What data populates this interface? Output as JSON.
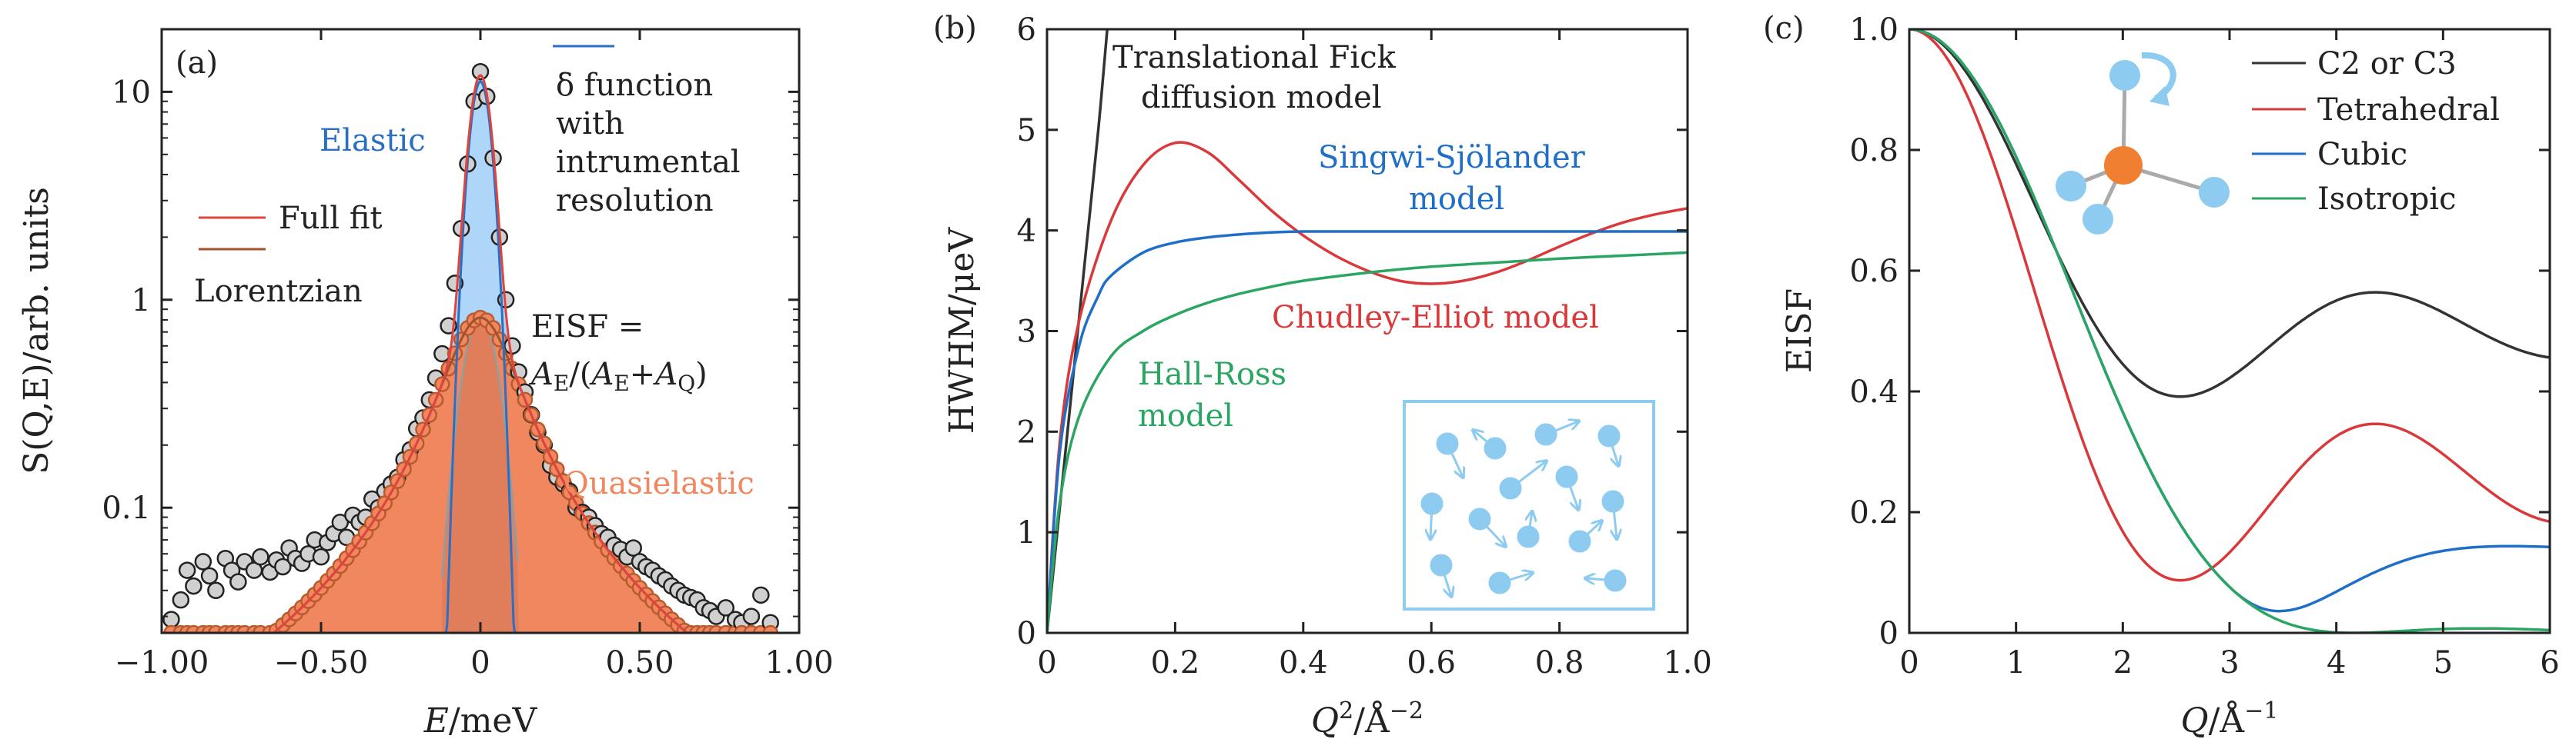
{
  "colors": {
    "fit": "#e0443c",
    "lorentz_line": "#a0522d",
    "lorentz_fill": "#f0875e",
    "elastic_fill": "#aed6f8",
    "elastic_line": "#2a6fc4",
    "data_fill": "#d0d0d0",
    "c2c3": "#333333",
    "tetra": "#d9393b",
    "cubic": "#1f6fc8",
    "iso": "#2aa562",
    "fick": "#333333",
    "ce": "#d9393b",
    "ss": "#1f6fc8",
    "hr": "#2aa562",
    "molecule_center": "#f07f31",
    "molecule_h": "#8ecbf0"
  },
  "chart_data": [
    {
      "panel": "(a)",
      "type": "line",
      "xlabel_pre": "E",
      "xlabel_post": "/meV",
      "ylabel": "S(Q,E)/arb. units",
      "yscale": "log",
      "xlim": [
        -1.0,
        1.0
      ],
      "ylim": [
        0.025,
        20
      ],
      "xticks": [
        -1.0,
        -0.5,
        0,
        0.5,
        1.0
      ],
      "xtick_labels": [
        "−1.00",
        "−0.50",
        "0",
        "0.50",
        "1.00"
      ],
      "yticks": [
        0.1,
        1,
        10
      ],
      "ytick_labels": [
        "0.1",
        "1",
        "10"
      ],
      "legend": {
        "full_fit": "Full fit",
        "lorentzian": "Lorentzian",
        "delta_line1": "δ function",
        "delta_line2": "with",
        "delta_line3": "intrumental",
        "delta_line4": "resolution"
      },
      "annotations": {
        "elastic": "Elastic",
        "quasielastic": "Quasielastic",
        "eisf_line1": "EISF =",
        "eisf_line2": "A_E/(A_E+A_Q)"
      },
      "model": {
        "lorentz_amp": 0.82,
        "lorentz_hwhm": 0.115,
        "elastic_amp": 11.2,
        "elastic_sigma": 0.03,
        "core_sigma": 0.05,
        "core_amp": 0.82
      },
      "points": [
        [
          -0.97,
          0.029
        ],
        [
          -0.94,
          0.036
        ],
        [
          -0.92,
          0.05
        ],
        [
          -0.9,
          0.042
        ],
        [
          -0.87,
          0.055
        ],
        [
          -0.85,
          0.047
        ],
        [
          -0.83,
          0.04
        ],
        [
          -0.8,
          0.057
        ],
        [
          -0.78,
          0.05
        ],
        [
          -0.76,
          0.044
        ],
        [
          -0.74,
          0.055
        ],
        [
          -0.71,
          0.05
        ],
        [
          -0.69,
          0.058
        ],
        [
          -0.66,
          0.049
        ],
        [
          -0.64,
          0.056
        ],
        [
          -0.62,
          0.052
        ],
        [
          -0.6,
          0.064
        ],
        [
          -0.58,
          0.057
        ],
        [
          -0.56,
          0.054
        ],
        [
          -0.54,
          0.06
        ],
        [
          -0.52,
          0.07
        ],
        [
          -0.5,
          0.058
        ],
        [
          -0.48,
          0.068
        ],
        [
          -0.46,
          0.075
        ],
        [
          -0.44,
          0.085
        ],
        [
          -0.42,
          0.072
        ],
        [
          -0.4,
          0.092
        ],
        [
          -0.38,
          0.085
        ],
        [
          -0.36,
          0.09
        ],
        [
          -0.34,
          0.11
        ],
        [
          -0.32,
          0.1
        ],
        [
          -0.3,
          0.12
        ],
        [
          -0.28,
          0.13
        ],
        [
          -0.26,
          0.14
        ],
        [
          -0.24,
          0.17
        ],
        [
          -0.22,
          0.19
        ],
        [
          -0.2,
          0.24
        ],
        [
          -0.18,
          0.27
        ],
        [
          -0.16,
          0.33
        ],
        [
          -0.14,
          0.42
        ],
        [
          -0.12,
          0.55
        ],
        [
          -0.1,
          0.75
        ],
        [
          -0.08,
          1.2
        ],
        [
          -0.06,
          2.2
        ],
        [
          -0.04,
          4.5
        ],
        [
          -0.02,
          9.0
        ],
        [
          0.0,
          12.5
        ],
        [
          0.02,
          9.5
        ],
        [
          0.04,
          4.8
        ],
        [
          0.06,
          2.0
        ],
        [
          0.08,
          1.0
        ],
        [
          0.1,
          0.6
        ],
        [
          0.12,
          0.45
        ],
        [
          0.14,
          0.36
        ],
        [
          0.16,
          0.28
        ],
        [
          0.18,
          0.23
        ],
        [
          0.2,
          0.2
        ],
        [
          0.22,
          0.16
        ],
        [
          0.24,
          0.14
        ],
        [
          0.26,
          0.13
        ],
        [
          0.28,
          0.12
        ],
        [
          0.3,
          0.1
        ],
        [
          0.32,
          0.095
        ],
        [
          0.34,
          0.09
        ],
        [
          0.36,
          0.082
        ],
        [
          0.38,
          0.075
        ],
        [
          0.4,
          0.072
        ],
        [
          0.42,
          0.066
        ],
        [
          0.44,
          0.063
        ],
        [
          0.46,
          0.058
        ],
        [
          0.48,
          0.064
        ],
        [
          0.5,
          0.055
        ],
        [
          0.52,
          0.052
        ],
        [
          0.54,
          0.05
        ],
        [
          0.56,
          0.047
        ],
        [
          0.58,
          0.045
        ],
        [
          0.6,
          0.042
        ],
        [
          0.62,
          0.04
        ],
        [
          0.64,
          0.038
        ],
        [
          0.66,
          0.037
        ],
        [
          0.68,
          0.036
        ],
        [
          0.7,
          0.033
        ],
        [
          0.72,
          0.032
        ],
        [
          0.74,
          0.03
        ],
        [
          0.77,
          0.033
        ],
        [
          0.8,
          0.029
        ],
        [
          0.82,
          0.028
        ],
        [
          0.85,
          0.03
        ],
        [
          0.88,
          0.038
        ],
        [
          0.91,
          0.028
        ]
      ]
    },
    {
      "panel": "(b)",
      "type": "line",
      "xlabel_pre": "Q",
      "xlabel_post": "/Å",
      "ylabel": "HWHM/μeV",
      "xlim": [
        0,
        1.0
      ],
      "ylim": [
        0,
        6
      ],
      "xticks": [
        0,
        0.2,
        0.4,
        0.6,
        0.8,
        1.0
      ],
      "xtick_labels": [
        "0",
        "0.2",
        "0.4",
        "0.6",
        "0.8",
        "1.0"
      ],
      "yticks": [
        0,
        1,
        2,
        3,
        4,
        5,
        6
      ],
      "ytick_labels": [
        "0",
        "1",
        "2",
        "3",
        "4",
        "5",
        "6"
      ],
      "series": [
        {
          "name": "Translational Fick diffusion model",
          "key": "fick",
          "x": [
            0,
            0.02,
            0.04,
            0.06,
            0.08,
            0.094
          ],
          "y": [
            0,
            1.25,
            2.5,
            3.75,
            5.0,
            6.0
          ]
        },
        {
          "name": "Chudley-Elliot model",
          "key": "ce",
          "x": [
            0,
            0.02,
            0.05,
            0.1,
            0.15,
            0.2,
            0.25,
            0.3,
            0.35,
            0.4,
            0.45,
            0.5,
            0.55,
            0.6,
            0.65,
            0.7,
            0.75,
            0.8,
            0.85,
            0.9,
            0.95,
            1.0
          ],
          "y": [
            0,
            1.9,
            3.1,
            4.1,
            4.65,
            4.87,
            4.78,
            4.5,
            4.2,
            3.95,
            3.75,
            3.6,
            3.5,
            3.47,
            3.5,
            3.58,
            3.7,
            3.84,
            3.97,
            4.08,
            4.16,
            4.22
          ]
        },
        {
          "name": "Singwi-Sjölander model",
          "key": "ss",
          "x": [
            0,
            0.02,
            0.05,
            0.08,
            0.1,
            0.15,
            0.2,
            0.25,
            0.3,
            0.35,
            0.4,
            0.5,
            0.6,
            0.7,
            0.8,
            0.9,
            1.0
          ],
          "y": [
            0,
            1.8,
            2.85,
            3.35,
            3.55,
            3.78,
            3.88,
            3.93,
            3.96,
            3.98,
            3.99,
            3.99,
            3.99,
            3.99,
            3.99,
            3.99,
            3.99
          ]
        },
        {
          "name": "Hall-Ross model",
          "key": "hr",
          "x": [
            0,
            0.02,
            0.05,
            0.1,
            0.15,
            0.2,
            0.25,
            0.3,
            0.35,
            0.4,
            0.5,
            0.6,
            0.7,
            0.8,
            0.9,
            1.0
          ],
          "y": [
            0,
            1.3,
            2.15,
            2.75,
            3.0,
            3.16,
            3.28,
            3.37,
            3.44,
            3.5,
            3.58,
            3.64,
            3.68,
            3.72,
            3.75,
            3.78
          ]
        }
      ],
      "labels": {
        "fick_line1": "Translational Fick",
        "fick_line2": "diffusion model",
        "ss_line1": "Singwi-Sjölander",
        "ss_line2": "model",
        "ce": "Chudley-Elliot model",
        "hr_line1": "Hall-Ross",
        "hr_line2": "model"
      }
    },
    {
      "panel": "(c)",
      "type": "line",
      "xlabel_pre": "Q",
      "xlabel_post": "/Å",
      "ylabel": "EISF",
      "xlim": [
        0,
        6
      ],
      "ylim": [
        0,
        1.0
      ],
      "xticks": [
        0,
        1,
        2,
        3,
        4,
        5,
        6
      ],
      "xtick_labels": [
        "0",
        "1",
        "2",
        "3",
        "4",
        "5",
        "6"
      ],
      "yticks": [
        0,
        0.2,
        0.4,
        0.6,
        0.8,
        1.0
      ],
      "ytick_labels": [
        "0",
        "0.2",
        "0.4",
        "0.6",
        "0.8",
        "1.0"
      ],
      "models": [
        {
          "name": "C2 or C3",
          "key": "c2c3",
          "kind": "j0",
          "a": 1,
          "b": 0.5,
          "d": 1.77
        },
        {
          "name": "Tetrahedral",
          "key": "tetra",
          "kind": "j0",
          "a": 0.25,
          "b": 0.75,
          "d": 1.77
        },
        {
          "name": "Cubic",
          "key": "cubic",
          "kind": "cubic",
          "r": 1.08
        },
        {
          "name": "Isotropic",
          "key": "iso",
          "kind": "j0sq",
          "r": 1.08
        }
      ]
    }
  ]
}
